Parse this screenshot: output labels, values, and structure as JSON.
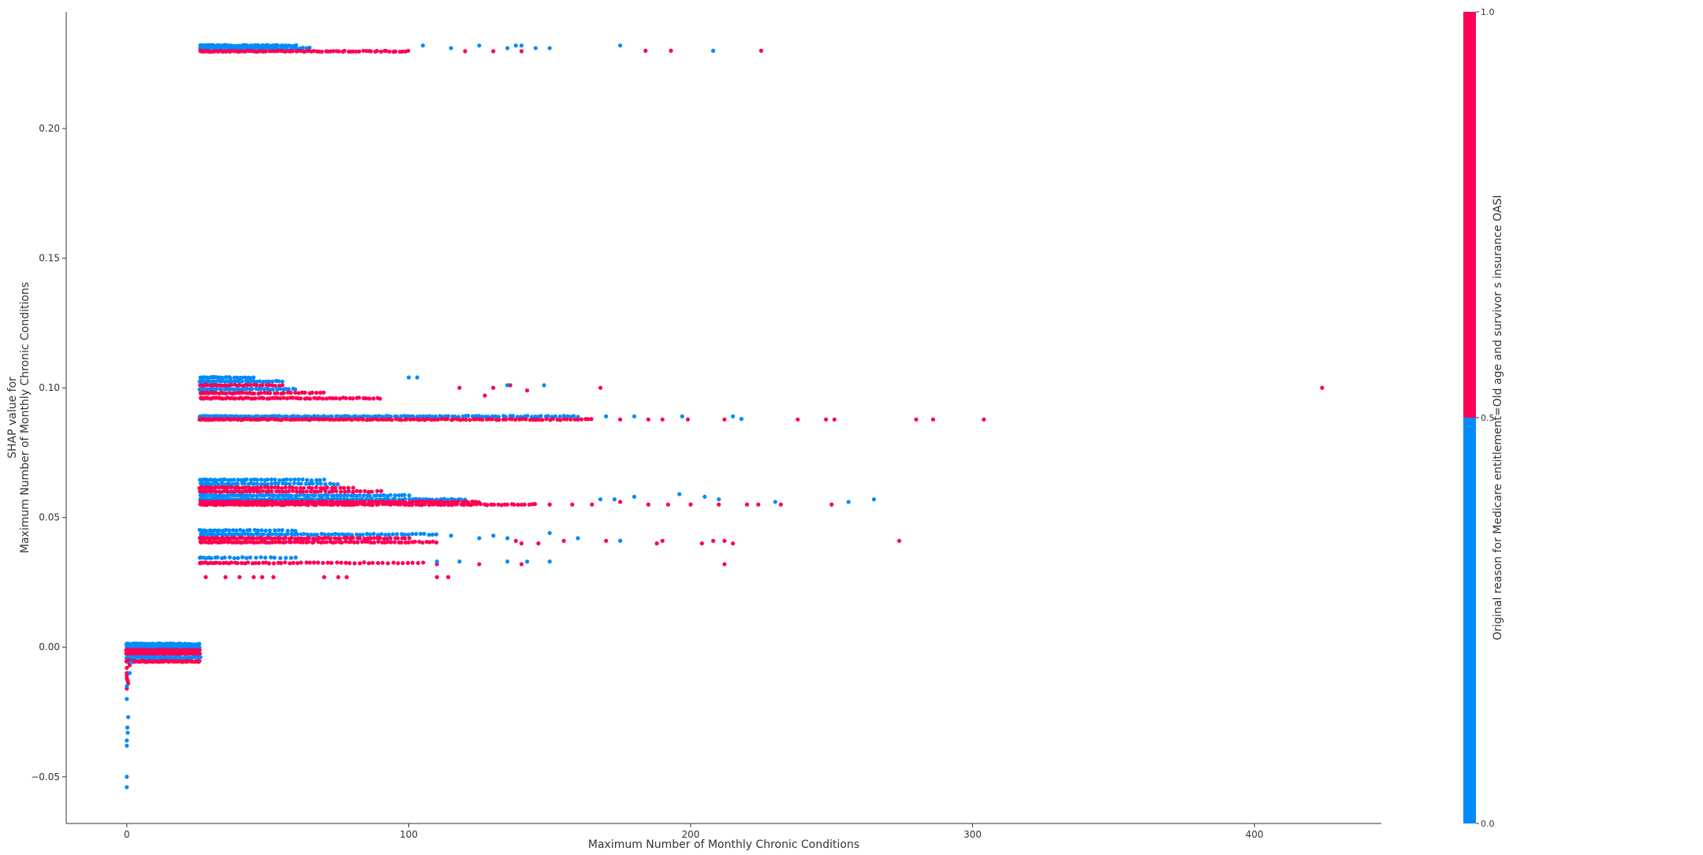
{
  "chart_data": {
    "type": "scatter",
    "title": "",
    "xlabel": "Maximum Number of Monthly Chronic Conditions",
    "ylabel_line1": "SHAP value for",
    "ylabel_line2": "Maximum Number of Monthly Chronic Conditions",
    "xlim": [
      -21.5,
      445
    ],
    "ylim": [
      -0.068,
      0.245
    ],
    "x_ticks": [
      0,
      100,
      200,
      300,
      400
    ],
    "x_tick_labels": [
      "0",
      "100",
      "200",
      "300",
      "400"
    ],
    "y_ticks": [
      -0.05,
      0.0,
      0.05,
      0.1,
      0.15,
      0.2
    ],
    "y_tick_labels": [
      "−0.05",
      "0.00",
      "0.05",
      "0.10",
      "0.15",
      "0.20"
    ],
    "colorbar": {
      "label": "Original reason for Medicare entitlement=Old age and survivor s insurance OASI",
      "ticks": [
        0.0,
        0.5,
        1.0
      ],
      "tick_labels": [
        "0.0",
        "0.5",
        "1.0"
      ],
      "low_color": "#008bfb",
      "high_color": "#ff0052"
    },
    "grid": false,
    "colors": {
      "class_0": "#008bfb",
      "class_1": "#ff0052",
      "axis": "#333333"
    },
    "dense_bands": [
      {
        "x": [
          0,
          26
        ],
        "y": 0.0012,
        "cls": 0,
        "n": 70
      },
      {
        "x": [
          0,
          26
        ],
        "y": 0.0,
        "cls": 0,
        "n": 60
      },
      {
        "x": [
          0,
          26
        ],
        "y": -0.0012,
        "cls": 1,
        "n": 70
      },
      {
        "x": [
          0,
          26
        ],
        "y": -0.0025,
        "cls": 1,
        "n": 70
      },
      {
        "x": [
          0,
          26
        ],
        "y": -0.004,
        "cls": 0,
        "n": 60
      },
      {
        "x": [
          0,
          26
        ],
        "y": -0.0055,
        "cls": 1,
        "n": 70
      },
      {
        "x": [
          26,
          60
        ],
        "y": 0.232,
        "cls": 0,
        "n": 50
      },
      {
        "x": [
          26,
          65
        ],
        "y": 0.231,
        "cls": 0,
        "n": 45
      },
      {
        "x": [
          26,
          100
        ],
        "y": 0.2298,
        "cls": 1,
        "n": 90
      },
      {
        "x": [
          26,
          45
        ],
        "y": 0.104,
        "cls": 0,
        "n": 25
      },
      {
        "x": [
          26,
          55
        ],
        "y": 0.1025,
        "cls": 0,
        "n": 35
      },
      {
        "x": [
          26,
          55
        ],
        "y": 0.101,
        "cls": 1,
        "n": 35
      },
      {
        "x": [
          26,
          60
        ],
        "y": 0.0995,
        "cls": 0,
        "n": 40
      },
      {
        "x": [
          26,
          70
        ],
        "y": 0.098,
        "cls": 1,
        "n": 45
      },
      {
        "x": [
          26,
          90
        ],
        "y": 0.096,
        "cls": 1,
        "n": 70
      },
      {
        "x": [
          26,
          160
        ],
        "y": 0.089,
        "cls": 0,
        "n": 140
      },
      {
        "x": [
          26,
          165
        ],
        "y": 0.0878,
        "cls": 1,
        "n": 150
      },
      {
        "x": [
          26,
          70
        ],
        "y": 0.0645,
        "cls": 0,
        "n": 40
      },
      {
        "x": [
          26,
          75
        ],
        "y": 0.063,
        "cls": 0,
        "n": 45
      },
      {
        "x": [
          26,
          80
        ],
        "y": 0.0615,
        "cls": 1,
        "n": 50
      },
      {
        "x": [
          26,
          90
        ],
        "y": 0.06,
        "cls": 1,
        "n": 60
      },
      {
        "x": [
          26,
          100
        ],
        "y": 0.0585,
        "cls": 0,
        "n": 80
      },
      {
        "x": [
          26,
          120
        ],
        "y": 0.057,
        "cls": 0,
        "n": 100
      },
      {
        "x": [
          26,
          125
        ],
        "y": 0.056,
        "cls": 1,
        "n": 110
      },
      {
        "x": [
          26,
          145
        ],
        "y": 0.055,
        "cls": 1,
        "n": 130
      },
      {
        "x": [
          26,
          60
        ],
        "y": 0.045,
        "cls": 0,
        "n": 30
      },
      {
        "x": [
          26,
          110
        ],
        "y": 0.0435,
        "cls": 0,
        "n": 80
      },
      {
        "x": [
          26,
          100
        ],
        "y": 0.042,
        "cls": 1,
        "n": 80
      },
      {
        "x": [
          26,
          110
        ],
        "y": 0.0405,
        "cls": 1,
        "n": 90
      },
      {
        "x": [
          26,
          60
        ],
        "y": 0.0345,
        "cls": 0,
        "n": 25
      },
      {
        "x": [
          26,
          105
        ],
        "y": 0.0325,
        "cls": 1,
        "n": 60
      }
    ],
    "points_class_0": [
      [
        0,
        -0.015
      ],
      [
        0,
        -0.02
      ],
      [
        0.5,
        -0.027
      ],
      [
        0.2,
        -0.031
      ],
      [
        0.3,
        -0.033
      ],
      [
        0,
        -0.036
      ],
      [
        0,
        -0.038
      ],
      [
        0,
        -0.05
      ],
      [
        0,
        -0.054
      ],
      [
        1,
        -0.01
      ],
      [
        2,
        -0.004
      ],
      [
        1.5,
        -0.006
      ],
      [
        105,
        0.232
      ],
      [
        115,
        0.231
      ],
      [
        125,
        0.232
      ],
      [
        135,
        0.231
      ],
      [
        138,
        0.232
      ],
      [
        140,
        0.232
      ],
      [
        145,
        0.231
      ],
      [
        150,
        0.231
      ],
      [
        175,
        0.232
      ],
      [
        208,
        0.23
      ],
      [
        100,
        0.104
      ],
      [
        103,
        0.104
      ],
      [
        135,
        0.101
      ],
      [
        148,
        0.101
      ],
      [
        170,
        0.089
      ],
      [
        180,
        0.089
      ],
      [
        197,
        0.089
      ],
      [
        215,
        0.089
      ],
      [
        218,
        0.088
      ],
      [
        168,
        0.057
      ],
      [
        173,
        0.057
      ],
      [
        180,
        0.058
      ],
      [
        196,
        0.059
      ],
      [
        205,
        0.058
      ],
      [
        210,
        0.057
      ],
      [
        230,
        0.056
      ],
      [
        265,
        0.057
      ],
      [
        256,
        0.056
      ],
      [
        115,
        0.043
      ],
      [
        125,
        0.042
      ],
      [
        130,
        0.043
      ],
      [
        135,
        0.042
      ],
      [
        150,
        0.044
      ],
      [
        160,
        0.042
      ],
      [
        175,
        0.041
      ],
      [
        110,
        0.033
      ],
      [
        118,
        0.033
      ],
      [
        135,
        0.033
      ],
      [
        142,
        0.033
      ],
      [
        150,
        0.033
      ]
    ],
    "points_class_1": [
      [
        0,
        -0.008
      ],
      [
        0,
        -0.01
      ],
      [
        0,
        -0.011
      ],
      [
        0,
        -0.012
      ],
      [
        0.3,
        -0.013
      ],
      [
        0.5,
        -0.014
      ],
      [
        0,
        -0.016
      ],
      [
        0.6,
        -0.005
      ],
      [
        0.8,
        -0.006
      ],
      [
        1,
        -0.007
      ],
      [
        120,
        0.2298
      ],
      [
        130,
        0.2298
      ],
      [
        140,
        0.2298
      ],
      [
        184,
        0.23
      ],
      [
        193,
        0.23
      ],
      [
        225,
        0.23
      ],
      [
        118,
        0.1
      ],
      [
        130,
        0.1
      ],
      [
        136,
        0.101
      ],
      [
        142,
        0.099
      ],
      [
        168,
        0.1
      ],
      [
        424,
        0.1
      ],
      [
        127,
        0.097
      ],
      [
        175,
        0.0878
      ],
      [
        185,
        0.0878
      ],
      [
        190,
        0.0878
      ],
      [
        199,
        0.0878
      ],
      [
        212,
        0.0878
      ],
      [
        238,
        0.0878
      ],
      [
        248,
        0.0878
      ],
      [
        251,
        0.0878
      ],
      [
        280,
        0.0878
      ],
      [
        286,
        0.0878
      ],
      [
        304,
        0.0878
      ],
      [
        150,
        0.055
      ],
      [
        158,
        0.055
      ],
      [
        165,
        0.055
      ],
      [
        175,
        0.056
      ],
      [
        185,
        0.055
      ],
      [
        192,
        0.055
      ],
      [
        200,
        0.055
      ],
      [
        210,
        0.055
      ],
      [
        220,
        0.055
      ],
      [
        224,
        0.055
      ],
      [
        232,
        0.055
      ],
      [
        250,
        0.055
      ],
      [
        138,
        0.041
      ],
      [
        140,
        0.04
      ],
      [
        146,
        0.04
      ],
      [
        155,
        0.041
      ],
      [
        170,
        0.041
      ],
      [
        188,
        0.04
      ],
      [
        190,
        0.041
      ],
      [
        204,
        0.04
      ],
      [
        208,
        0.041
      ],
      [
        212,
        0.041
      ],
      [
        215,
        0.04
      ],
      [
        274,
        0.041
      ],
      [
        212,
        0.032
      ],
      [
        110,
        0.032
      ],
      [
        125,
        0.032
      ],
      [
        140,
        0.032
      ],
      [
        28,
        0.027
      ],
      [
        35,
        0.027
      ],
      [
        40,
        0.027
      ],
      [
        45,
        0.027
      ],
      [
        48,
        0.027
      ],
      [
        52,
        0.027
      ],
      [
        70,
        0.027
      ],
      [
        75,
        0.027
      ],
      [
        78,
        0.027
      ],
      [
        110,
        0.027
      ],
      [
        114,
        0.027
      ]
    ]
  }
}
